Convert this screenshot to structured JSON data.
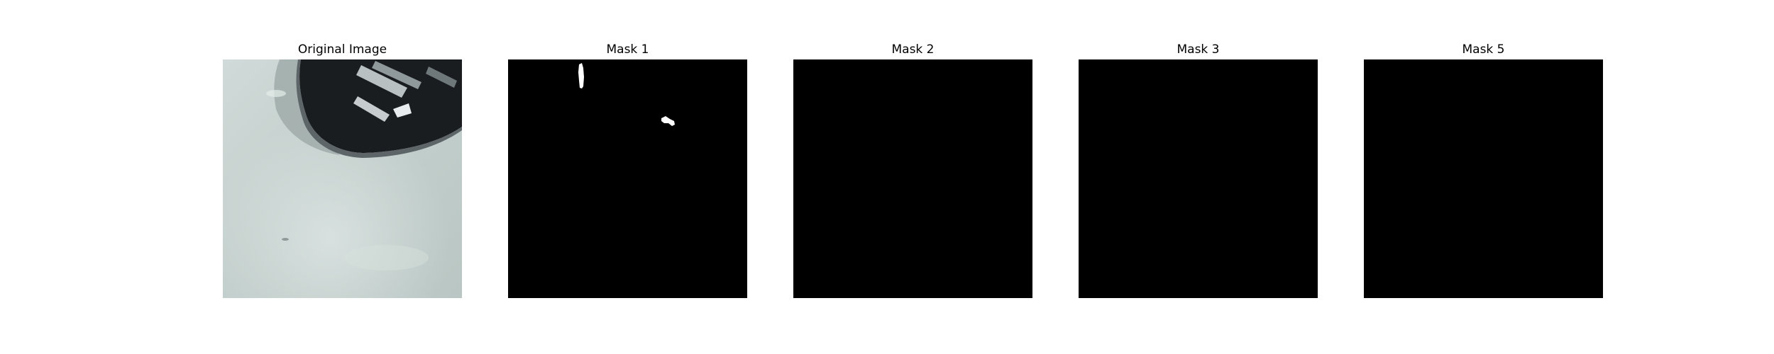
{
  "figure": {
    "panels": [
      {
        "title": "Original Image",
        "kind": "photo"
      },
      {
        "title": "Mask 1",
        "kind": "mask"
      },
      {
        "title": "Mask 2",
        "kind": "mask"
      },
      {
        "title": "Mask 3",
        "kind": "mask"
      },
      {
        "title": "Mask 5",
        "kind": "mask"
      }
    ]
  },
  "colors": {
    "background": "#ffffff",
    "mask_background": "#000000",
    "mask_foreground": "#ffffff",
    "photo_surface": "#c4d0cd",
    "photo_object": "#1c1f22"
  }
}
